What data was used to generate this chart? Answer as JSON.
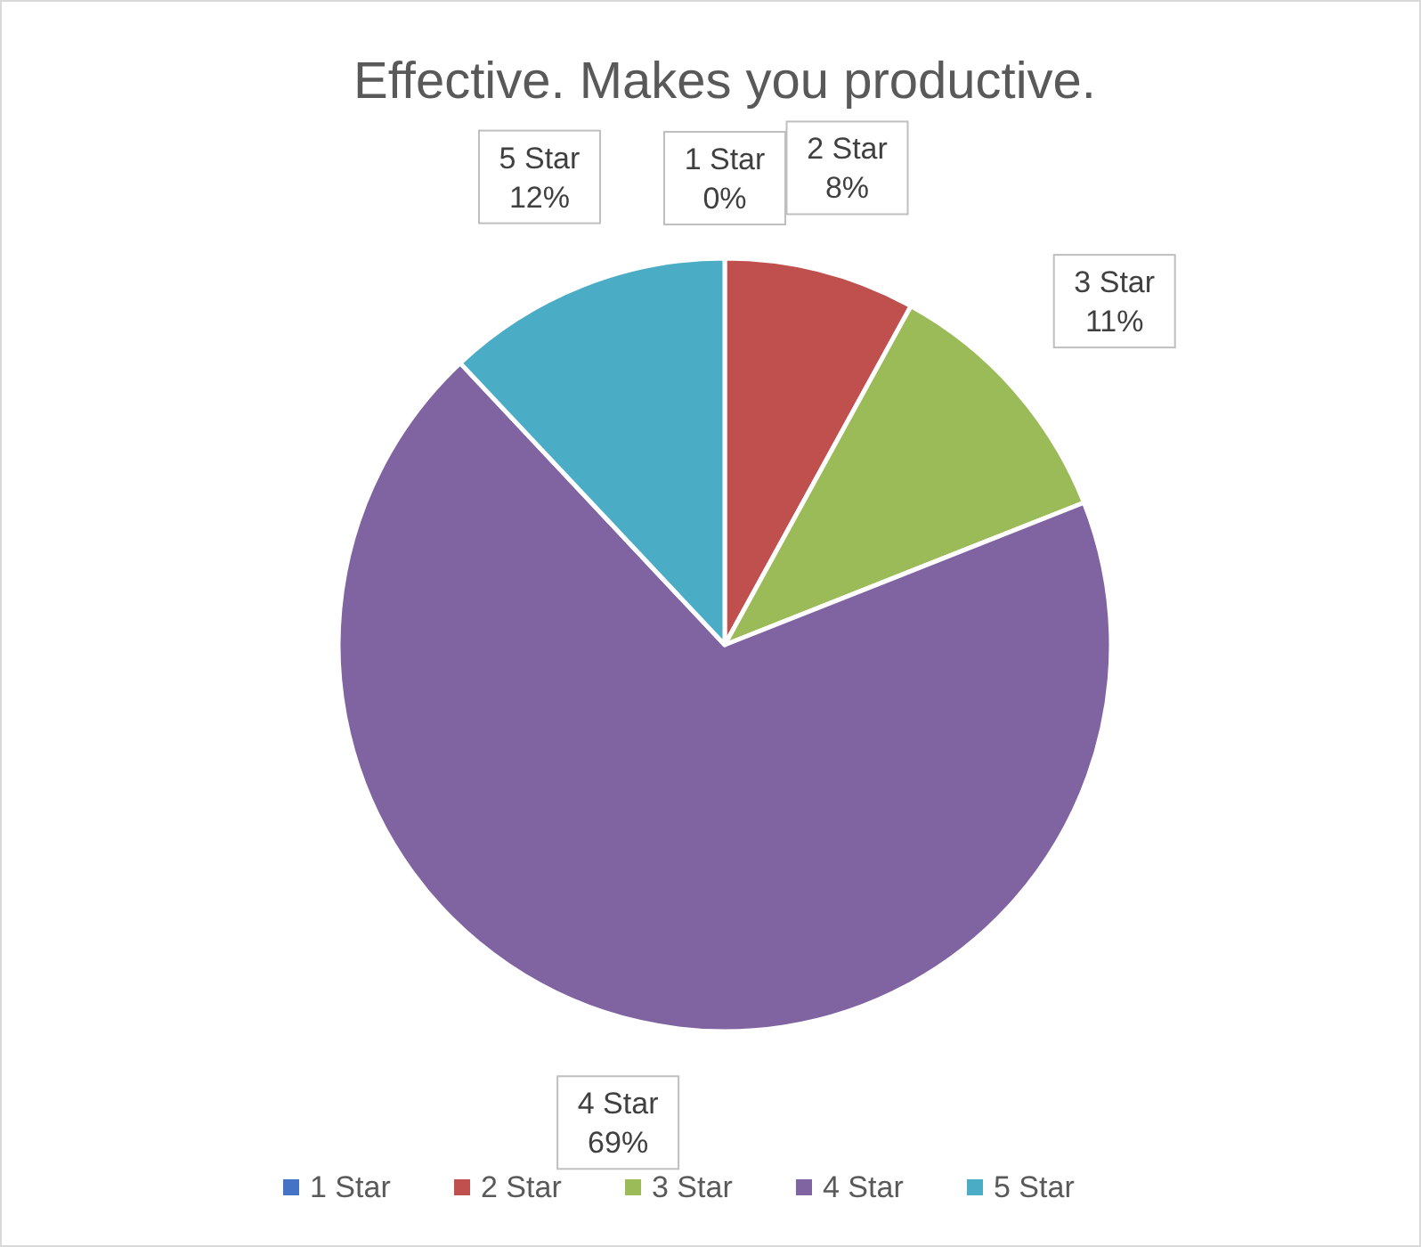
{
  "chart_data": {
    "type": "pie",
    "title": "Effective. Makes you productive.",
    "categories": [
      "1 Star",
      "2 Star",
      "3 Star",
      "4 Star",
      "5 Star"
    ],
    "values": [
      0,
      8,
      11,
      69,
      12
    ],
    "value_labels": [
      "0%",
      "8%",
      "11%",
      "69%",
      "12%"
    ],
    "colors": [
      "#4472c4",
      "#c0504d",
      "#9bbb59",
      "#8064a2",
      "#4bacc6"
    ],
    "legend": "bottom"
  }
}
